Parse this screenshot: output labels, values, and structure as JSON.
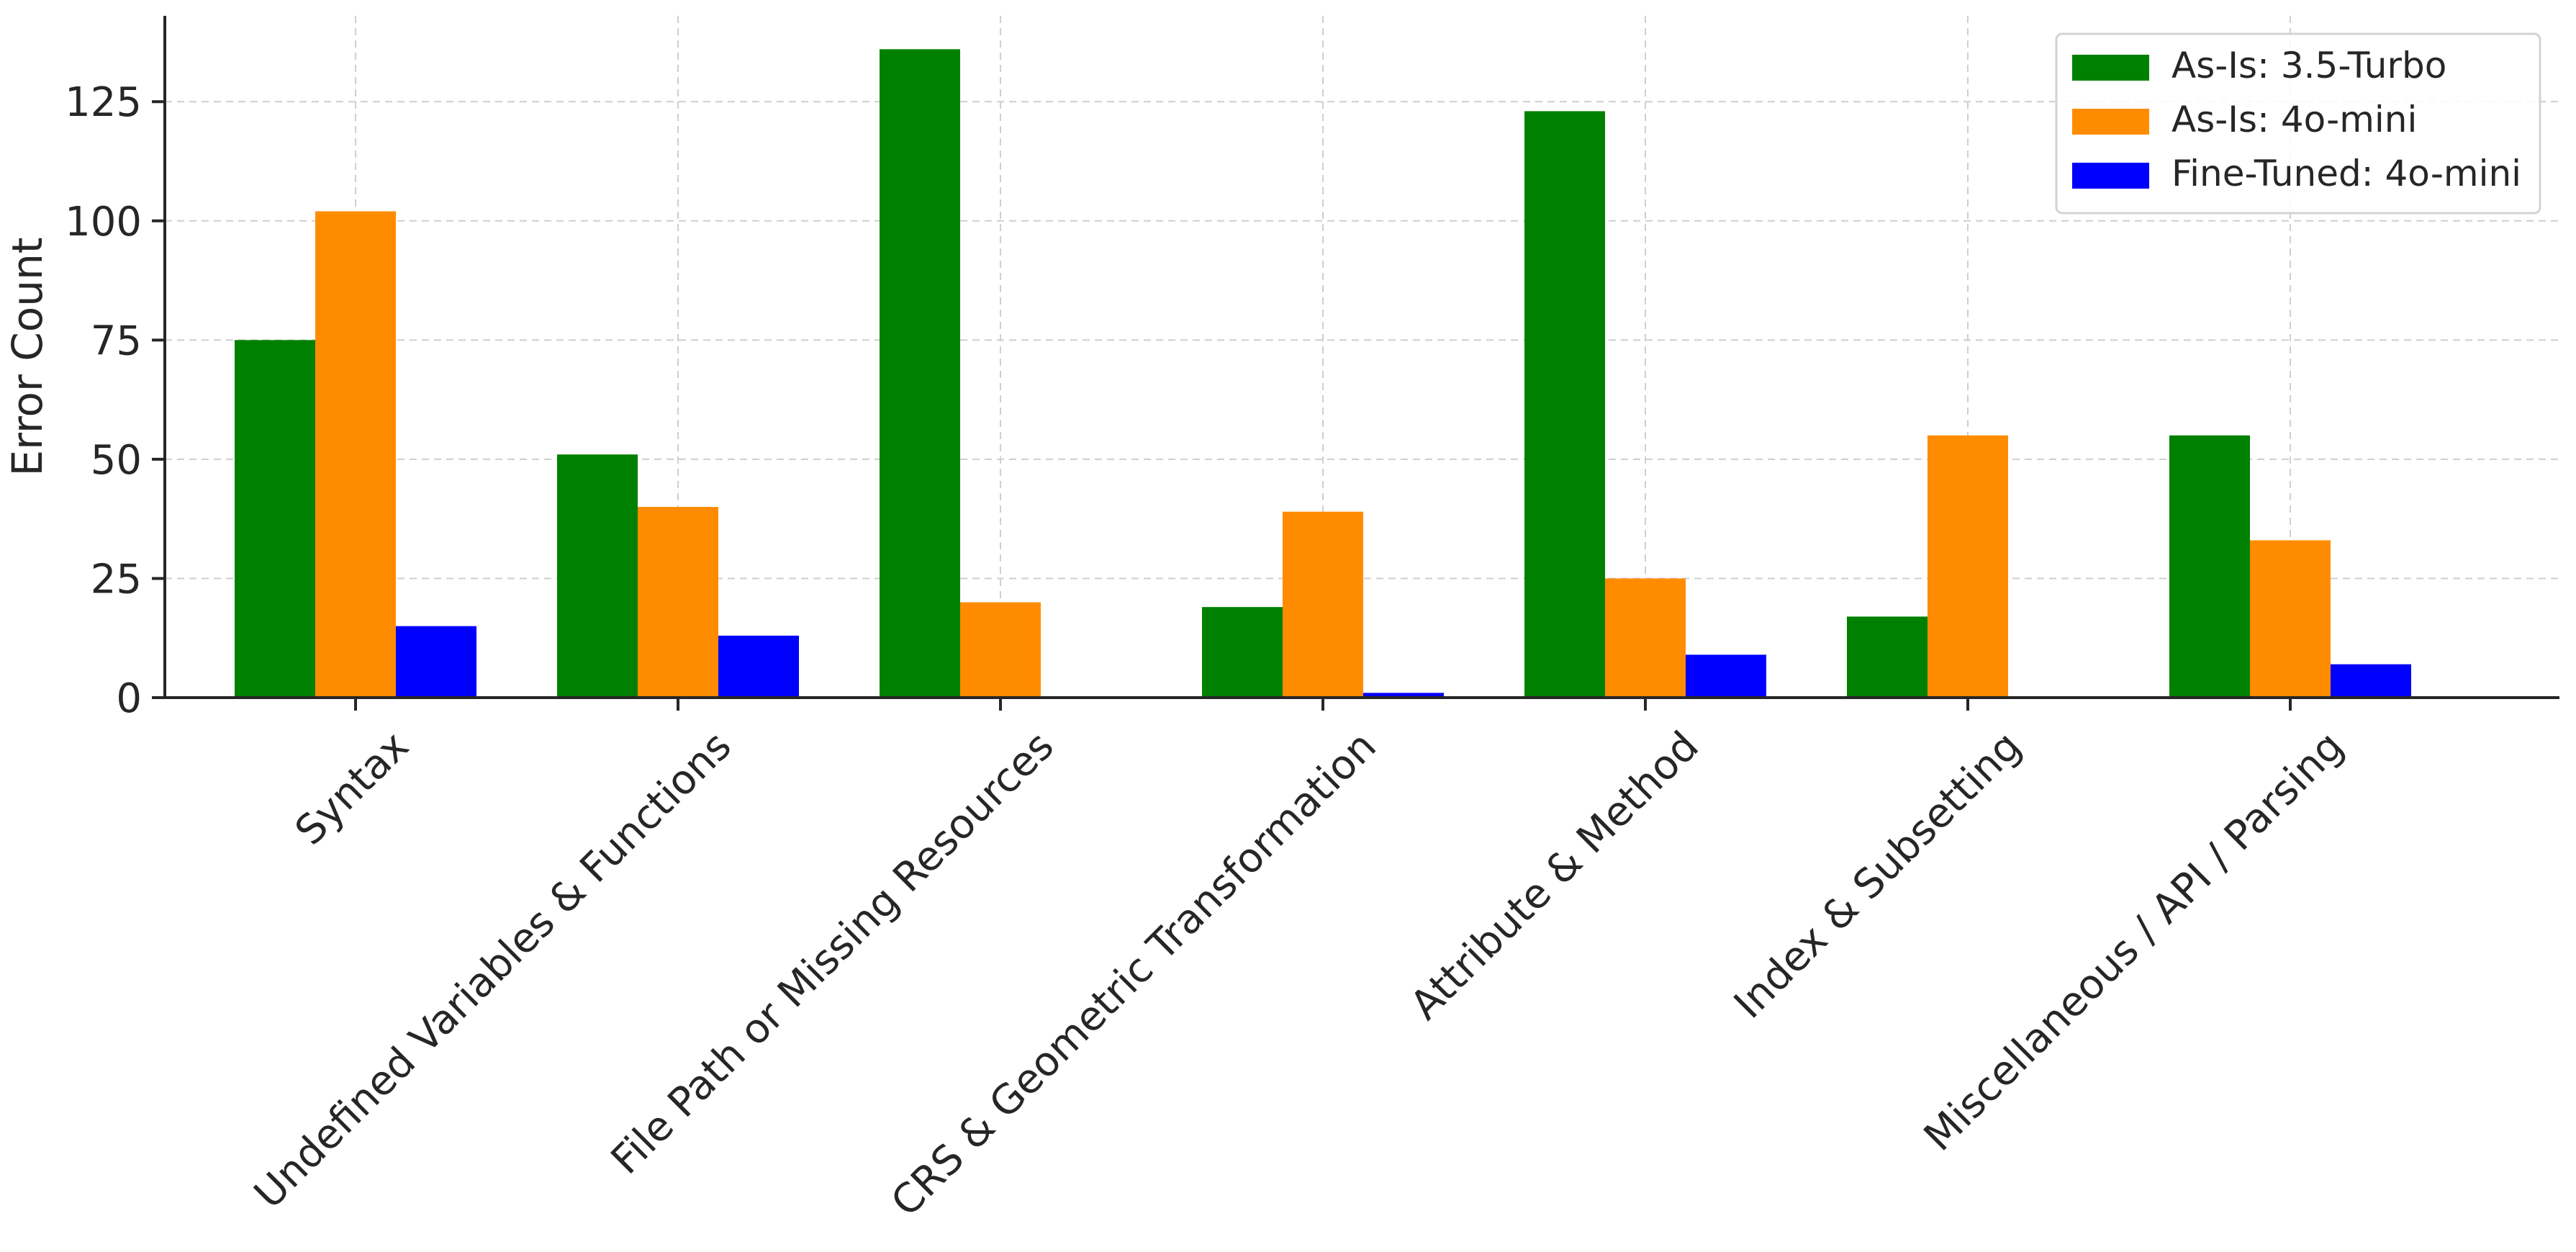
{
  "chart_data": {
    "type": "bar",
    "title": "",
    "xlabel": "",
    "ylabel": "Error Count",
    "ylim": [
      0,
      143
    ],
    "yticks": [
      0,
      25,
      50,
      75,
      100,
      125
    ],
    "grid": true,
    "legend_position": "top-right",
    "categories": [
      "Syntax",
      "Undefined Variables & Functions",
      "File Path or Missing Resources",
      "CRS & Geometric Transformation",
      "Attribute & Method",
      "Index & Subsetting",
      "Miscellaneous / API / Parsing"
    ],
    "series": [
      {
        "name": "As-Is: 3.5-Turbo",
        "color": "#008000",
        "values": [
          75,
          51,
          136,
          19,
          123,
          17,
          55
        ]
      },
      {
        "name": "As-Is: 4o-mini",
        "color": "#ff8c00",
        "values": [
          102,
          40,
          20,
          39,
          25,
          55,
          33
        ]
      },
      {
        "name": "Fine-Tuned: 4o-mini",
        "color": "#0000ff",
        "values": [
          15,
          13,
          0,
          1,
          9,
          0,
          7
        ]
      }
    ]
  }
}
